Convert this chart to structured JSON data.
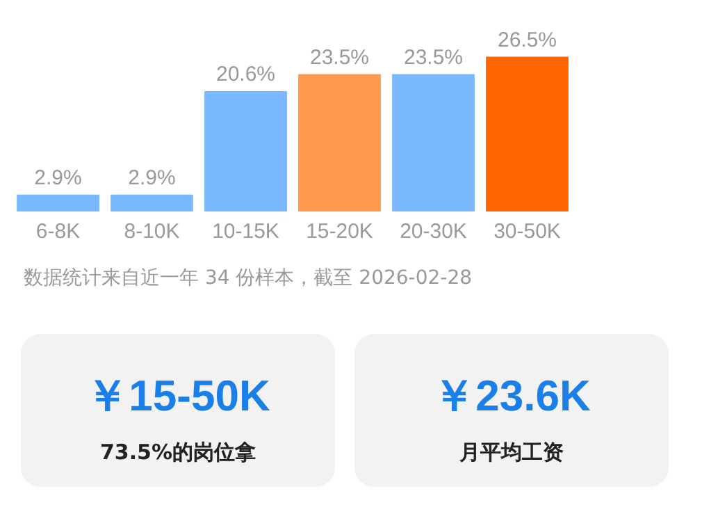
{
  "chart_data": [
    {
      "type": "bar",
      "categories": [
        "6-8K",
        "8-10K",
        "10-15K",
        "15-20K",
        "20-30K",
        "30-50K"
      ],
      "values": [
        2.9,
        2.9,
        20.6,
        23.5,
        23.5,
        26.5
      ],
      "colors": [
        "#7ab8ff",
        "#7ab8ff",
        "#7ab8ff",
        "#ff9a50",
        "#7ab8ff",
        "#ff6600"
      ],
      "value_labels": [
        "2.9%",
        "2.9%",
        "20.6%",
        "23.5%",
        "23.5%",
        "26.5%"
      ],
      "grid": false,
      "legend": false,
      "annotations": [
        "数据统计来自近一年 34 份样本，截至 2026-02-28"
      ]
    },
    {
      "type": "other",
      "title": "￥15-50K",
      "subtitle": "73.5%的岗位拿"
    },
    {
      "type": "other",
      "title": "￥23.6K",
      "subtitle": "月平均工资"
    }
  ]
}
